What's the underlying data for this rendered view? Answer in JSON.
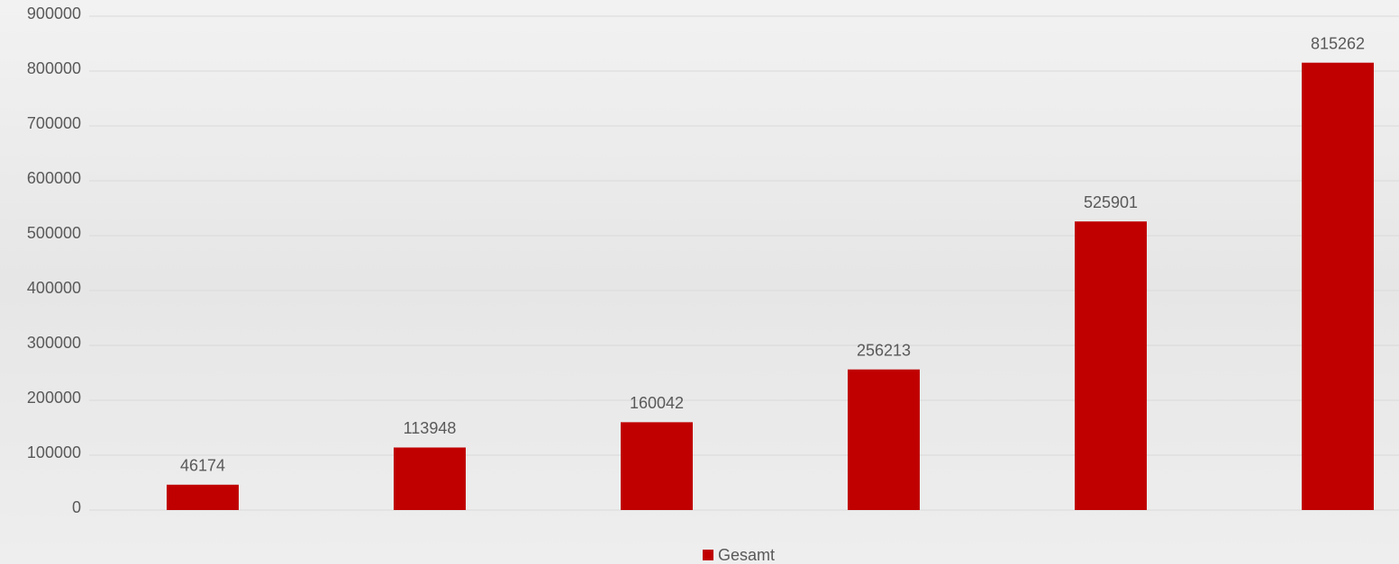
{
  "chart_data": {
    "type": "bar",
    "categories": [
      null,
      null,
      null,
      null,
      null,
      null
    ],
    "series": [
      {
        "name": "Gesamt",
        "color": "#c00000",
        "values": [
          46174,
          113948,
          160042,
          256213,
          525901,
          815262
        ]
      }
    ],
    "ylim": [
      0,
      900000
    ],
    "yticks": [
      0,
      100000,
      200000,
      300000,
      400000,
      500000,
      600000,
      700000,
      800000,
      900000
    ],
    "grid": true,
    "legend": "bottom"
  }
}
